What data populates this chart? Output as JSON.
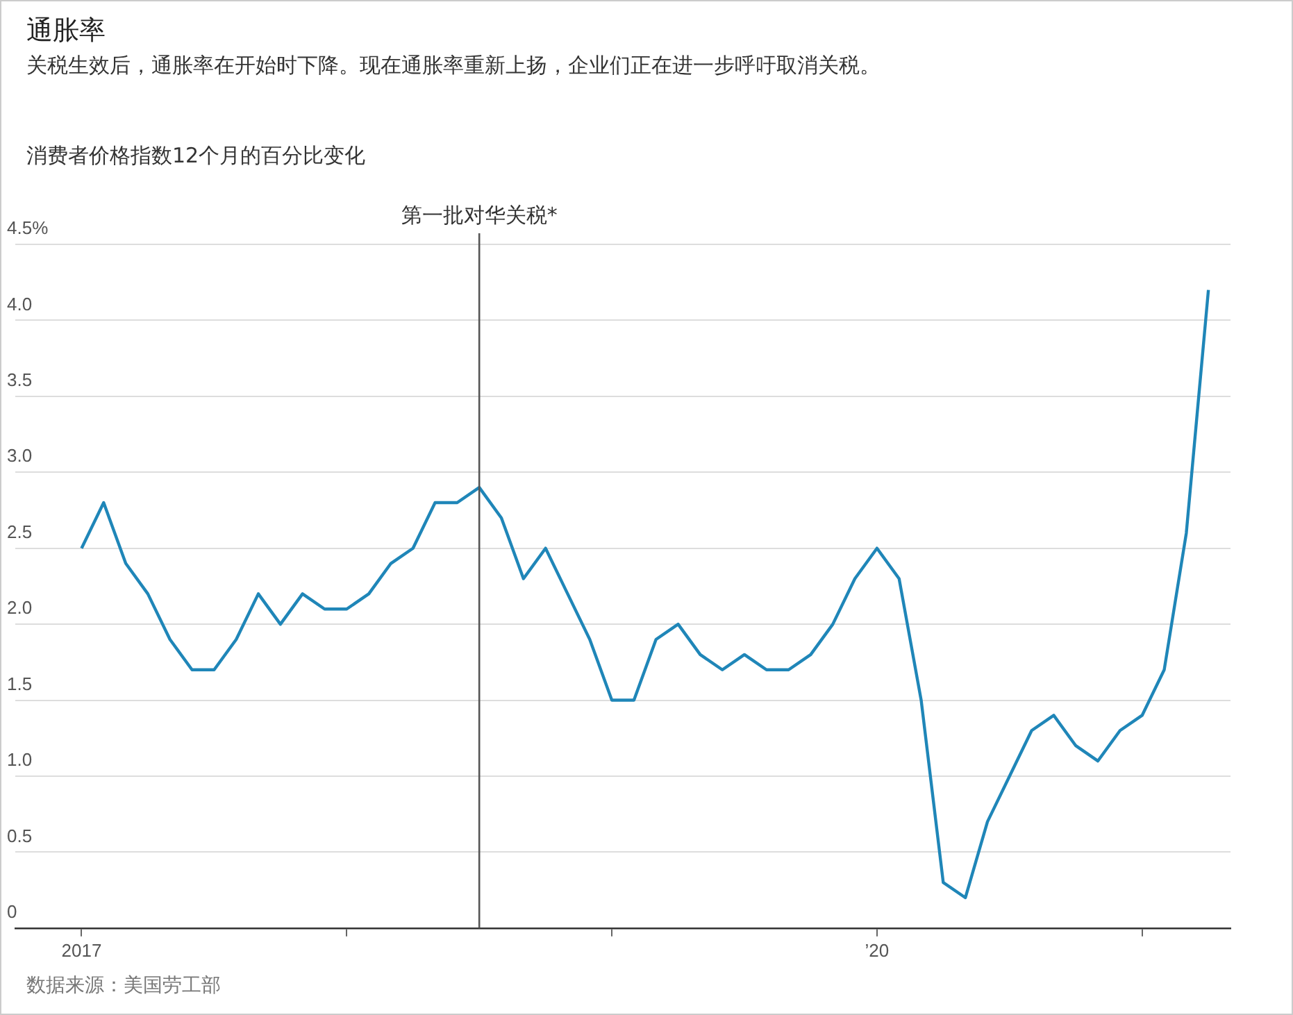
{
  "chart_data": {
    "type": "line",
    "title": "通胀率",
    "subtitle": "关税生效后，通胀率在开始时下降。现在通胀率重新上扬，企业们正在进一步呼吁取消关税。",
    "ylabel": "消费者价格指数12个月的百分比变化",
    "x": [
      "2017-01",
      "2017-02",
      "2017-03",
      "2017-04",
      "2017-05",
      "2017-06",
      "2017-07",
      "2017-08",
      "2017-09",
      "2017-10",
      "2017-11",
      "2017-12",
      "2018-01",
      "2018-02",
      "2018-03",
      "2018-04",
      "2018-05",
      "2018-06",
      "2018-07",
      "2018-08",
      "2018-09",
      "2018-10",
      "2018-11",
      "2018-12",
      "2019-01",
      "2019-02",
      "2019-03",
      "2019-04",
      "2019-05",
      "2019-06",
      "2019-07",
      "2019-08",
      "2019-09",
      "2019-10",
      "2019-11",
      "2019-12",
      "2020-01",
      "2020-02",
      "2020-03",
      "2020-04",
      "2020-05",
      "2020-06",
      "2020-07",
      "2020-08",
      "2020-09",
      "2020-10",
      "2020-11",
      "2020-12",
      "2021-01",
      "2021-02",
      "2021-03",
      "2021-04"
    ],
    "series": [
      {
        "color": "#1f86b8",
        "values": [
          2.5,
          2.8,
          2.4,
          2.2,
          1.9,
          1.7,
          1.7,
          1.9,
          2.2,
          2.0,
          2.2,
          2.1,
          2.1,
          2.2,
          2.4,
          2.5,
          2.8,
          2.8,
          2.9,
          2.7,
          2.3,
          2.5,
          2.2,
          1.9,
          1.5,
          1.5,
          1.9,
          2.0,
          1.8,
          1.7,
          1.8,
          1.7,
          1.7,
          1.8,
          2.0,
          2.3,
          2.5,
          2.3,
          1.5,
          0.3,
          0.2,
          0.7,
          1.0,
          1.3,
          1.4,
          1.2,
          1.1,
          1.3,
          1.4,
          1.7,
          2.6,
          4.2
        ]
      }
    ],
    "xlim": [
      "2016-10",
      "2021-05"
    ],
    "xticks": [
      {
        "value": "2017-01",
        "label": "2017"
      },
      {
        "value": "2018-01",
        "label": null
      },
      {
        "value": "2019-01",
        "label": null
      },
      {
        "value": "2020-01",
        "label": "’20"
      },
      {
        "value": "2021-01",
        "label": null
      }
    ],
    "ylim": [
      0,
      4.5
    ],
    "yticks": [
      0,
      0.5,
      {
        "value": 1,
        "label": "1.0"
      },
      1.5,
      {
        "value": 2,
        "label": "2.0"
      },
      2.5,
      {
        "value": 3,
        "label": "3.0"
      },
      3.5,
      {
        "value": 4,
        "label": "4.0"
      },
      {
        "value": 4.5,
        "label": "4.5%"
      }
    ],
    "grid": "y",
    "marker": "none",
    "line_style": "solid",
    "ref_lines": [
      {
        "axis": "x",
        "value": "2018-07",
        "label": "第一批对华关税*",
        "color": "#555555"
      }
    ],
    "annotations": [
      "数据来源：美国劳工部"
    ]
  }
}
